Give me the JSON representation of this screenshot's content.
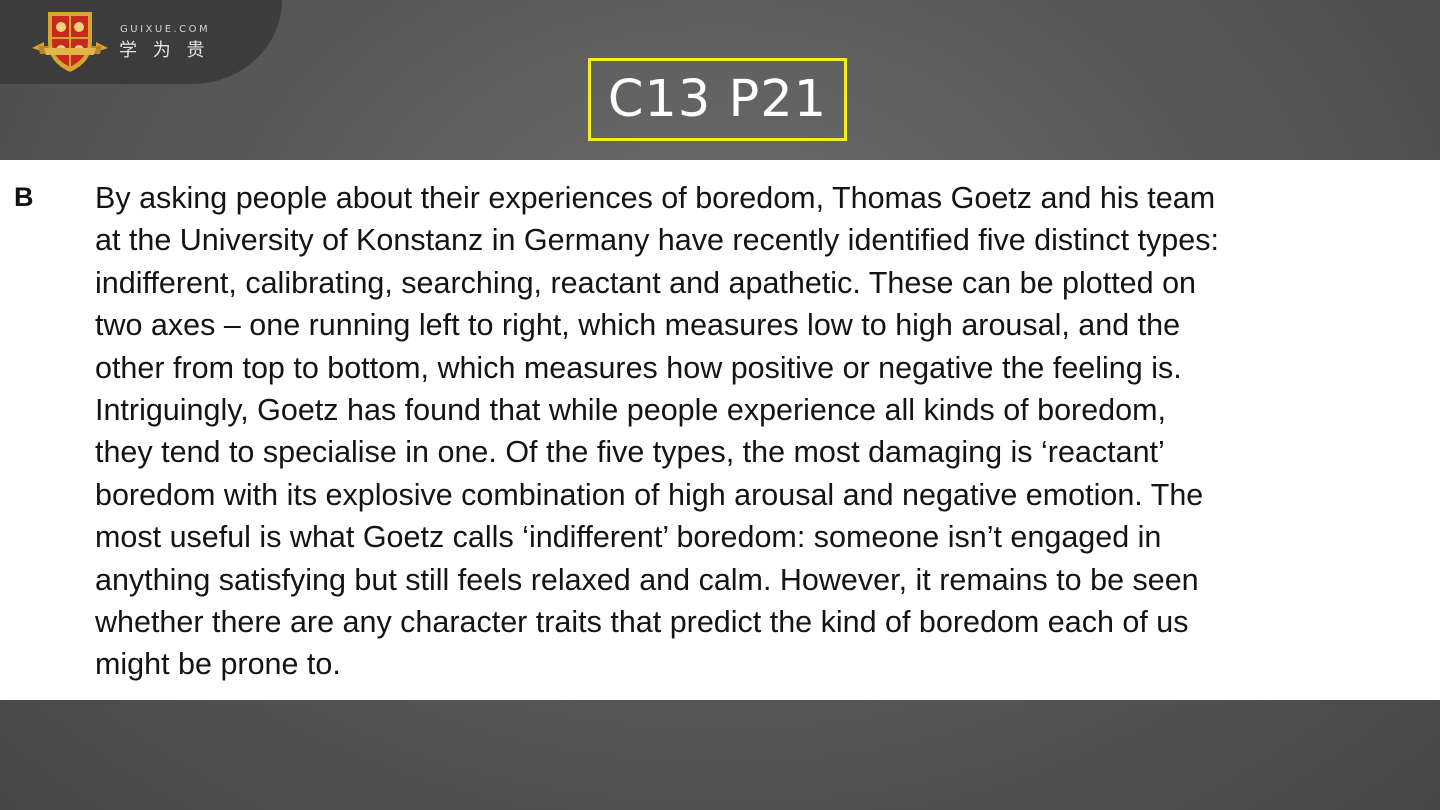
{
  "brand": {
    "site": "GUIXUE.COM",
    "name_cn": "学 为 贵",
    "logo_icon": "shield-crest-icon"
  },
  "slide_title": "C13 P21",
  "passage": {
    "section_letter": "B",
    "lines": [
      "By asking people about their experiences of boredom, Thomas Goetz and his team",
      "at the University of Konstanz in Germany have recently identified five distinct types:",
      "indifferent, calibrating, searching, reactant and apathetic. These can be plotted on",
      "two axes – one running left to right, which measures low to high arousal, and the",
      "other from top to bottom, which measures how positive or negative the feeling is.",
      "Intriguingly, Goetz has found that while people experience all kinds of boredom,",
      "they tend to specialise in one. Of the five types, the most damaging is ‘reactant’",
      "boredom with its explosive combination of high arousal and negative emotion. The",
      "most useful is what Goetz calls ‘indifferent’ boredom: someone isn’t engaged in",
      "anything satisfying but still feels relaxed and calm. However, it remains to be seen",
      "whether there are any character traits that predict the kind of boredom each of us",
      "might be prone to."
    ]
  },
  "colors": {
    "title_border": "#f4ec1c",
    "background": "#5a5a5a",
    "logo_red": "#c8281e",
    "logo_gold": "#d9a531"
  }
}
